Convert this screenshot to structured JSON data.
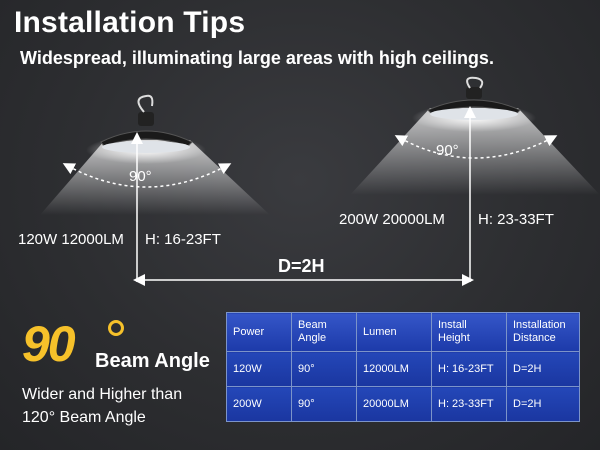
{
  "header": {
    "title": "Installation Tips",
    "subtitle": "Widespread, illuminating large areas with high ceilings."
  },
  "diagram": {
    "left_angle": "90°",
    "right_angle": "90°",
    "left_spec": "120W 12000LM",
    "left_height": "H: 16-23FT",
    "right_spec": "200W 20000LM",
    "right_height": "H: 23-33FT",
    "distance": "D=2H"
  },
  "feature": {
    "big_number": "90",
    "beam_label": "Beam Angle",
    "line1": "Wider and Higher than",
    "line2": "120° Beam Angle"
  },
  "table": {
    "headers": [
      "Power",
      "Beam Angle",
      "Lumen",
      "Install Height",
      "Installation Distance"
    ],
    "rows": [
      [
        "120W",
        "90°",
        "12000LM",
        "H: 16-23FT",
        "D=2H"
      ],
      [
        "200W",
        "90°",
        "20000LM",
        "H: 23-33FT",
        "D=2H"
      ]
    ]
  }
}
